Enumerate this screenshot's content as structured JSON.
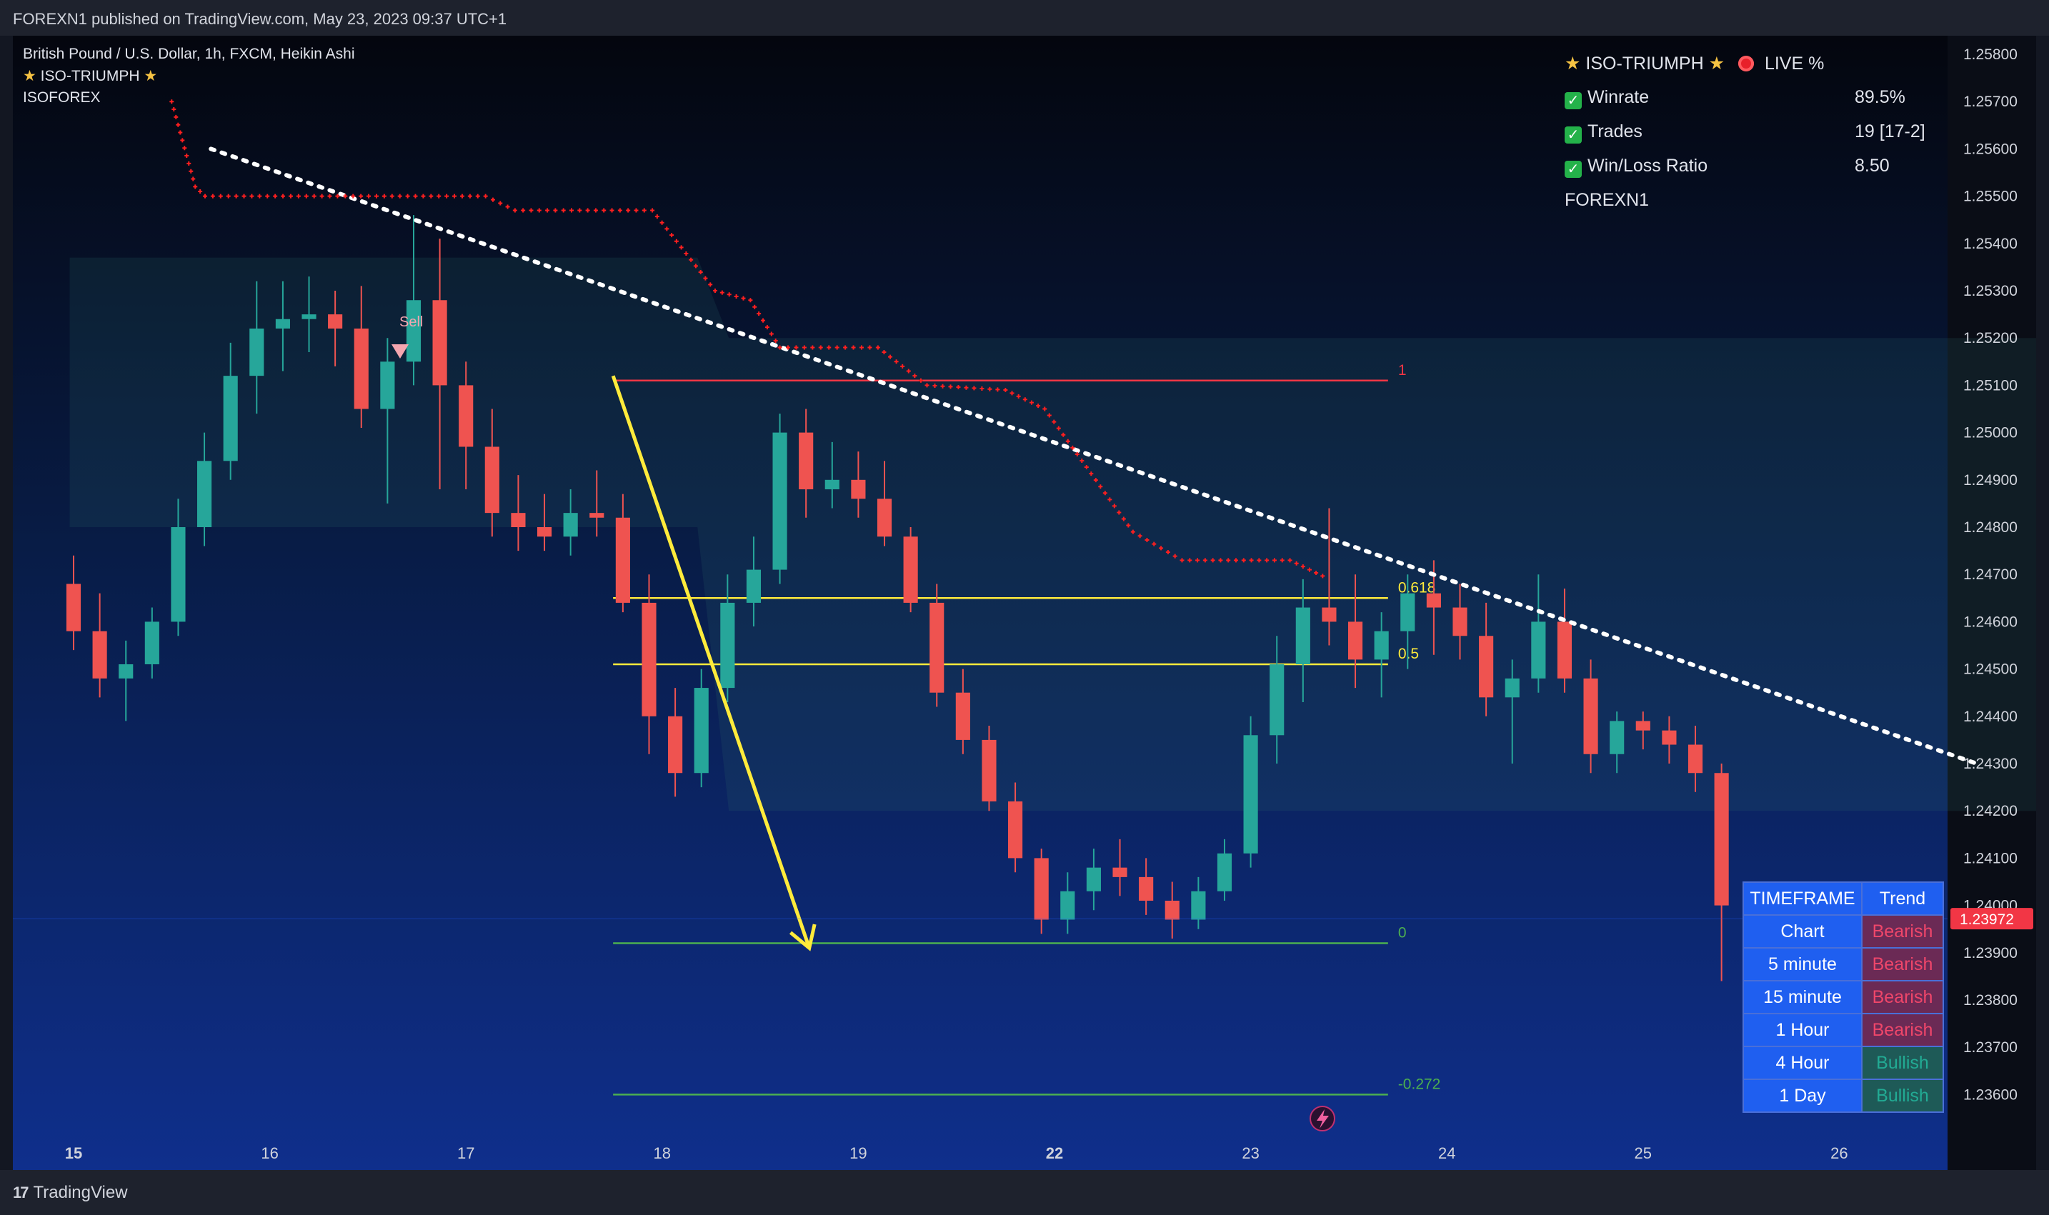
{
  "header": {
    "publisher_line": "FOREXN1 published on TradingView.com, May 23, 2023 09:37 UTC+1"
  },
  "footer": {
    "brand": "TradingView",
    "logo_glyph": "17"
  },
  "legend": {
    "symbol_line": "British Pound / U.S. Dollar, 1h, FXCM, Heikin Ashi",
    "indicator_line": "ISO-TRIUMPH",
    "indicator_star_icon": "star-icon",
    "author_line": "ISOFOREX"
  },
  "stats_panel": {
    "title": "ISO-TRIUMPH",
    "live_label": "LIVE %",
    "rows": [
      {
        "label": "Winrate",
        "value": "89.5%"
      },
      {
        "label": "Trades",
        "value": "19 [17-2]"
      },
      {
        "label": "Win/Loss Ratio",
        "value": "8.50"
      }
    ],
    "footer": "FOREXN1"
  },
  "trend_table": {
    "headers": [
      "TIMEFRAME",
      "Trend"
    ],
    "rows": [
      {
        "tf": "Chart",
        "trend": "Bearish"
      },
      {
        "tf": "5 minute",
        "trend": "Bearish"
      },
      {
        "tf": "15 minute",
        "trend": "Bearish"
      },
      {
        "tf": "1 Hour",
        "trend": "Bearish"
      },
      {
        "tf": "4 Hour",
        "trend": "Bullish"
      },
      {
        "tf": "1 Day",
        "trend": "Bullish"
      }
    ]
  },
  "signal": {
    "label": "Sell"
  },
  "colors": {
    "bull": "#26a69a",
    "bear": "#ef5350",
    "fib_top": "#f23645",
    "fib_mid": "#ffeb3b",
    "fib_low": "#4caf50",
    "trail": "#ff1f1f",
    "arrow": "#ffeb3b",
    "price_tag": "#f23645"
  },
  "chart_data": {
    "type": "candlestick",
    "title": "British Pound / U.S. Dollar, 1h, FXCM, Heikin Ashi",
    "price_axis": {
      "ticks": [
        "1.25800",
        "1.25700",
        "1.25600",
        "1.25500",
        "1.25400",
        "1.25300",
        "1.25200",
        "1.25100",
        "1.25000",
        "1.24900",
        "1.24800",
        "1.24700",
        "1.24600",
        "1.24500",
        "1.24400",
        "1.24300",
        "1.24200",
        "1.24100",
        "1.24000",
        "1.23900",
        "1.23800",
        "1.23700",
        "1.23600"
      ],
      "range": [
        1.2355,
        1.2583
      ]
    },
    "time_axis": {
      "ticks": [
        "15",
        "16",
        "17",
        "18",
        "19",
        "22",
        "23",
        "24",
        "25",
        "26"
      ],
      "bold": [
        "15",
        "22"
      ]
    },
    "last_price": "1.23972",
    "fib_levels": [
      {
        "label": "1",
        "price": 1.2511
      },
      {
        "label": "0.618",
        "price": 1.2465
      },
      {
        "label": "0.5",
        "price": 1.2451
      },
      {
        "label": "0",
        "price": 1.2392
      },
      {
        "label": "-0.272",
        "price": 1.236
      }
    ],
    "trendline": {
      "from": {
        "t": 15.7,
        "price": 1.256
      },
      "to": {
        "t": 24.7,
        "price": 1.243
      }
    },
    "arrow": {
      "from": {
        "t": 17.75,
        "price": 1.2512
      },
      "to": {
        "t": 18.75,
        "price": 1.2391
      }
    },
    "trailing_stop": [
      {
        "t": 15.5,
        "price": 1.257
      },
      {
        "t": 15.62,
        "price": 1.2552
      },
      {
        "t": 15.67,
        "price": 1.255
      },
      {
        "t": 17.1,
        "price": 1.255
      },
      {
        "t": 17.25,
        "price": 1.2547
      },
      {
        "t": 17.95,
        "price": 1.2547
      },
      {
        "t": 18.27,
        "price": 1.253
      },
      {
        "t": 18.45,
        "price": 1.2528
      },
      {
        "t": 18.6,
        "price": 1.2518
      },
      {
        "t": 19.1,
        "price": 1.2518
      },
      {
        "t": 19.35,
        "price": 1.251
      },
      {
        "t": 19.75,
        "price": 1.2509
      },
      {
        "t": 19.95,
        "price": 1.2505
      },
      {
        "t": 20.4,
        "price": 1.2479
      },
      {
        "t": 20.65,
        "price": 1.2473
      },
      {
        "t": 21.2,
        "price": 1.2473
      },
      {
        "t": 21.4,
        "price": 1.2469
      }
    ],
    "candles": [
      [
        1.2468,
        1.2474,
        1.2454,
        1.2458
      ],
      [
        1.2458,
        1.2466,
        1.2444,
        1.2448
      ],
      [
        1.2448,
        1.2456,
        1.2439,
        1.2451
      ],
      [
        1.2451,
        1.2463,
        1.2448,
        1.246
      ],
      [
        1.246,
        1.2486,
        1.2457,
        1.248
      ],
      [
        1.248,
        1.25,
        1.2476,
        1.2494
      ],
      [
        1.2494,
        1.2519,
        1.249,
        1.2512
      ],
      [
        1.2512,
        1.2532,
        1.2504,
        1.2522
      ],
      [
        1.2522,
        1.2532,
        1.2513,
        1.2524
      ],
      [
        1.2524,
        1.2533,
        1.2517,
        1.2525
      ],
      [
        1.2525,
        1.253,
        1.2514,
        1.2522
      ],
      [
        1.2522,
        1.2531,
        1.2501,
        1.2505
      ],
      [
        1.2505,
        1.252,
        1.2485,
        1.2515
      ],
      [
        1.2515,
        1.2546,
        1.251,
        1.2528
      ],
      [
        1.2528,
        1.2541,
        1.2488,
        1.251
      ],
      [
        1.251,
        1.2515,
        1.2488,
        1.2497
      ],
      [
        1.2497,
        1.2505,
        1.2478,
        1.2483
      ],
      [
        1.2483,
        1.2491,
        1.2475,
        1.248
      ],
      [
        1.248,
        1.2487,
        1.2475,
        1.2478
      ],
      [
        1.2478,
        1.2488,
        1.2474,
        1.2483
      ],
      [
        1.2483,
        1.2492,
        1.2478,
        1.2482
      ],
      [
        1.2482,
        1.2487,
        1.2462,
        1.2464
      ],
      [
        1.2464,
        1.247,
        1.2432,
        1.244
      ],
      [
        1.244,
        1.2446,
        1.2423,
        1.2428
      ],
      [
        1.2428,
        1.245,
        1.2425,
        1.2446
      ],
      [
        1.2446,
        1.247,
        1.2443,
        1.2464
      ],
      [
        1.2464,
        1.2478,
        1.2459,
        1.2471
      ],
      [
        1.2471,
        1.2504,
        1.2468,
        1.25
      ],
      [
        1.25,
        1.2505,
        1.2482,
        1.2488
      ],
      [
        1.2488,
        1.2498,
        1.2484,
        1.249
      ],
      [
        1.249,
        1.2496,
        1.2482,
        1.2486
      ],
      [
        1.2486,
        1.2494,
        1.2476,
        1.2478
      ],
      [
        1.2478,
        1.248,
        1.2462,
        1.2464
      ],
      [
        1.2464,
        1.2468,
        1.2442,
        1.2445
      ],
      [
        1.2445,
        1.245,
        1.2432,
        1.2435
      ],
      [
        1.2435,
        1.2438,
        1.242,
        1.2422
      ],
      [
        1.2422,
        1.2426,
        1.2407,
        1.241
      ],
      [
        1.241,
        1.2412,
        1.2394,
        1.2397
      ],
      [
        1.2397,
        1.2407,
        1.2394,
        1.2403
      ],
      [
        1.2403,
        1.2412,
        1.2399,
        1.2408
      ],
      [
        1.2408,
        1.2414,
        1.2402,
        1.2406
      ],
      [
        1.2406,
        1.241,
        1.2398,
        1.2401
      ],
      [
        1.2401,
        1.2405,
        1.2393,
        1.2397
      ],
      [
        1.2397,
        1.2406,
        1.2395,
        1.2403
      ],
      [
        1.2403,
        1.2414,
        1.2401,
        1.2411
      ],
      [
        1.2411,
        1.244,
        1.2408,
        1.2436
      ],
      [
        1.2436,
        1.2457,
        1.243,
        1.2451
      ],
      [
        1.2451,
        1.2469,
        1.2443,
        1.2463
      ],
      [
        1.2463,
        1.2484,
        1.2455,
        1.246
      ],
      [
        1.246,
        1.247,
        1.2446,
        1.2452
      ],
      [
        1.2452,
        1.2462,
        1.2444,
        1.2458
      ],
      [
        1.2458,
        1.247,
        1.245,
        1.2466
      ],
      [
        1.2466,
        1.2473,
        1.2453,
        1.2463
      ],
      [
        1.2463,
        1.2468,
        1.2452,
        1.2457
      ],
      [
        1.2457,
        1.2464,
        1.244,
        1.2444
      ],
      [
        1.2444,
        1.2452,
        1.243,
        1.2448
      ],
      [
        1.2448,
        1.247,
        1.2445,
        1.246
      ],
      [
        1.246,
        1.2467,
        1.2445,
        1.2448
      ],
      [
        1.2448,
        1.2452,
        1.2428,
        1.2432
      ],
      [
        1.2432,
        1.2441,
        1.2428,
        1.2439
      ],
      [
        1.2439,
        1.2441,
        1.2433,
        1.2437
      ],
      [
        1.2437,
        1.244,
        1.243,
        1.2434
      ],
      [
        1.2434,
        1.2438,
        1.2424,
        1.2428
      ],
      [
        1.2428,
        1.243,
        1.2384,
        1.24
      ]
    ],
    "cloud": {
      "start_t": 14.98,
      "step": 0.16,
      "upper": [
        1.2537,
        1.2537,
        1.2537,
        1.2537,
        1.2537,
        1.2537,
        1.2537,
        1.2537,
        1.2537,
        1.2537,
        1.2537,
        1.2537,
        1.2537,
        1.2537,
        1.2537,
        1.2537,
        1.2537,
        1.2537,
        1.2537,
        1.2537,
        1.2537,
        1.252,
        1.252,
        1.252,
        1.252,
        1.252,
        1.252,
        1.252,
        1.252,
        1.252,
        1.252,
        1.252,
        1.252,
        1.252,
        1.252,
        1.252,
        1.252,
        1.252,
        1.252,
        1.252,
        1.252,
        1.252,
        1.252,
        1.252,
        1.252,
        1.252,
        1.252,
        1.252,
        1.252,
        1.252,
        1.252,
        1.252,
        1.252,
        1.252,
        1.252,
        1.252,
        1.252,
        1.252,
        1.252,
        1.252,
        1.252,
        1.252,
        1.252,
        1.252
      ],
      "lower": [
        1.248,
        1.248,
        1.248,
        1.248,
        1.248,
        1.248,
        1.248,
        1.248,
        1.248,
        1.248,
        1.248,
        1.248,
        1.248,
        1.248,
        1.248,
        1.248,
        1.248,
        1.248,
        1.248,
        1.248,
        1.248,
        1.242,
        1.242,
        1.242,
        1.242,
        1.242,
        1.242,
        1.242,
        1.242,
        1.242,
        1.242,
        1.242,
        1.242,
        1.242,
        1.242,
        1.242,
        1.242,
        1.242,
        1.242,
        1.242,
        1.242,
        1.242,
        1.242,
        1.242,
        1.242,
        1.242,
        1.242,
        1.242,
        1.242,
        1.242,
        1.242,
        1.242,
        1.242,
        1.242,
        1.242,
        1.242,
        1.242,
        1.242,
        1.242,
        1.242,
        1.242,
        1.242,
        1.242,
        1.242
      ]
    }
  }
}
